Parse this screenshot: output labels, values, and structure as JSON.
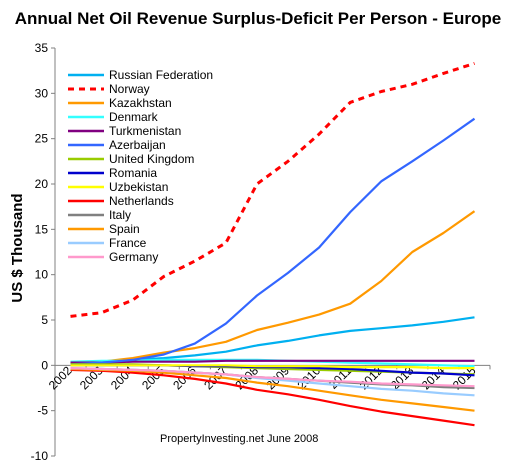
{
  "chart_data": {
    "type": "line",
    "title": "Annual Net Oil Revenue Surplus-Deficit Per Person - Europe",
    "ylabel": "US $ Thousand",
    "xlabel": "",
    "ylim": [
      -10,
      35
    ],
    "yticks": [
      -10,
      -5,
      0,
      5,
      10,
      15,
      20,
      25,
      30,
      35
    ],
    "x": [
      "2002",
      "2003",
      "2004",
      "2005",
      "2006",
      "2007",
      "2008",
      "2009",
      "2010",
      "2011",
      "2012",
      "2013",
      "2014",
      "2015"
    ],
    "grid": false,
    "legend_position": "top-left",
    "annotation": "PropertyInvesting.net     June 2008",
    "series": [
      {
        "name": "Russian Federation",
        "color": "#00b0f0",
        "dash": false,
        "values": [
          0.3,
          0.4,
          0.6,
          0.8,
          1.1,
          1.5,
          2.2,
          2.7,
          3.3,
          3.8,
          4.1,
          4.4,
          4.8,
          5.3
        ]
      },
      {
        "name": "Norway",
        "color": "#ff0000",
        "dash": true,
        "values": [
          5.4,
          5.8,
          7.2,
          9.8,
          11.5,
          13.5,
          20.0,
          22.5,
          25.5,
          29.0,
          30.2,
          31.0,
          32.2,
          33.3
        ]
      },
      {
        "name": "Kazakhstan",
        "color": "#ff9900",
        "dash": false,
        "values": [
          0.2,
          0.4,
          0.8,
          1.4,
          1.9,
          2.6,
          3.9,
          4.7,
          5.6,
          6.8,
          9.3,
          12.5,
          14.6,
          17.0
        ]
      },
      {
        "name": "Denmark",
        "color": "#33ffff",
        "dash": false,
        "values": [
          0.4,
          0.5,
          0.5,
          0.6,
          0.6,
          0.6,
          0.6,
          0.5,
          0.4,
          0.3,
          0.2,
          0.1,
          0.0,
          -0.1
        ]
      },
      {
        "name": "Turkmenistan",
        "color": "#800080",
        "dash": false,
        "values": [
          0.3,
          0.3,
          0.4,
          0.4,
          0.4,
          0.5,
          0.5,
          0.5,
          0.5,
          0.5,
          0.5,
          0.5,
          0.5,
          0.5
        ]
      },
      {
        "name": "Azerbaijan",
        "color": "#3366ff",
        "dash": false,
        "values": [
          0.1,
          0.3,
          0.6,
          1.2,
          2.4,
          4.6,
          7.7,
          10.2,
          13.0,
          16.9,
          20.3,
          22.5,
          24.8,
          27.2
        ]
      },
      {
        "name": "United Kingdom",
        "color": "#99cc00",
        "dash": false,
        "values": [
          0.1,
          0.1,
          0.1,
          0.0,
          -0.1,
          -0.2,
          -0.3,
          -0.4,
          -0.5,
          -0.6,
          -0.7,
          -0.8,
          -0.9,
          -1.0
        ]
      },
      {
        "name": "Romania",
        "color": "#0000cc",
        "dash": false,
        "values": [
          0.0,
          0.0,
          0.0,
          0.0,
          -0.1,
          -0.1,
          -0.2,
          -0.2,
          -0.3,
          -0.4,
          -0.6,
          -0.8,
          -0.9,
          -1.1
        ]
      },
      {
        "name": "Uzbekistan",
        "color": "#ffff00",
        "dash": false,
        "values": [
          0.0,
          0.0,
          0.0,
          0.0,
          0.0,
          0.0,
          -0.1,
          -0.1,
          -0.1,
          -0.2,
          -0.2,
          -0.2,
          -0.3,
          -0.3
        ]
      },
      {
        "name": "Netherlands",
        "color": "#ff0000",
        "dash": false,
        "values": [
          -0.5,
          -0.6,
          -0.8,
          -1.1,
          -1.5,
          -2.0,
          -2.7,
          -3.2,
          -3.8,
          -4.5,
          -5.1,
          -5.6,
          -6.1,
          -6.6
        ]
      },
      {
        "name": "Italy",
        "color": "#808080",
        "dash": false,
        "values": [
          -0.4,
          -0.4,
          -0.5,
          -0.6,
          -0.8,
          -1.0,
          -1.3,
          -1.5,
          -1.7,
          -1.9,
          -2.1,
          -2.2,
          -2.4,
          -2.5
        ]
      },
      {
        "name": "Spain",
        "color": "#ff9900",
        "dash": false,
        "values": [
          -0.4,
          -0.5,
          -0.6,
          -0.8,
          -1.1,
          -1.4,
          -1.9,
          -2.3,
          -2.8,
          -3.3,
          -3.8,
          -4.2,
          -4.6,
          -5.0
        ]
      },
      {
        "name": "France",
        "color": "#99ccff",
        "dash": false,
        "values": [
          -0.3,
          -0.4,
          -0.5,
          -0.6,
          -0.8,
          -1.0,
          -1.4,
          -1.7,
          -2.0,
          -2.3,
          -2.6,
          -2.8,
          -3.1,
          -3.3
        ]
      },
      {
        "name": "Germany",
        "color": "#ff99cc",
        "dash": false,
        "values": [
          -0.3,
          -0.4,
          -0.5,
          -0.6,
          -0.8,
          -1.0,
          -1.3,
          -1.5,
          -1.7,
          -1.8,
          -2.0,
          -2.1,
          -2.2,
          -2.3
        ]
      }
    ]
  }
}
